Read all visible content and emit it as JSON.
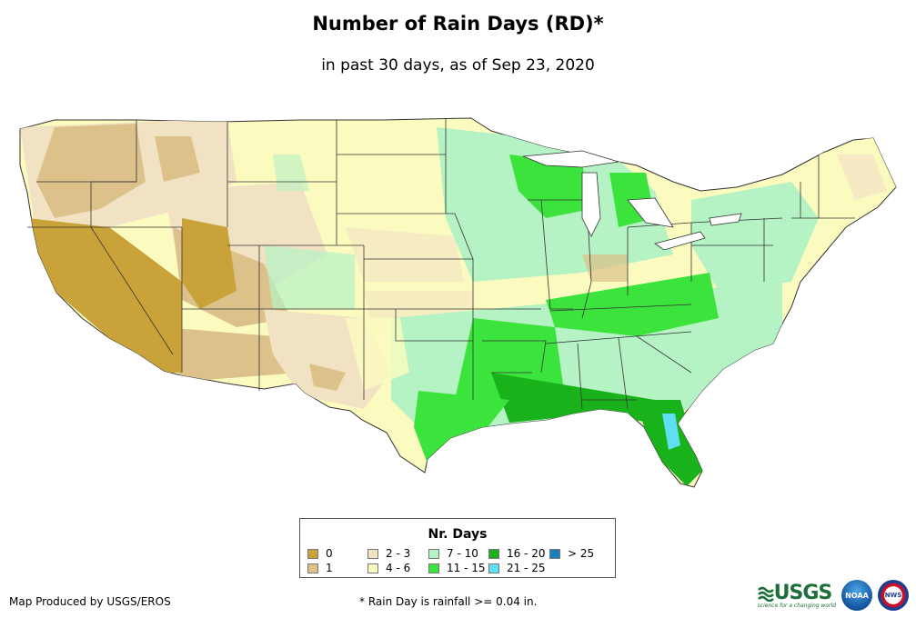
{
  "header": {
    "title": "Number of Rain Days (RD)*",
    "subtitle": "in past 30 days, as of Sep 23, 2020"
  },
  "legend": {
    "title": "Nr. Days",
    "items": [
      {
        "label": "0",
        "color": "#c9a23a"
      },
      {
        "label": "1",
        "color": "#dcc18a"
      },
      {
        "label": "2 - 3",
        "color": "#f2e2c4"
      },
      {
        "label": "4 - 6",
        "color": "#fbfbbf"
      },
      {
        "label": "7 - 10",
        "color": "#b5f2c4"
      },
      {
        "label": "11 - 15",
        "color": "#3ce33c"
      },
      {
        "label": "16 - 20",
        "color": "#1ab21a"
      },
      {
        "label": "21 - 25",
        "color": "#5ee0f2"
      },
      {
        "label": "> 25",
        "color": "#1a7fbf"
      }
    ]
  },
  "footer": {
    "producer": "Map Produced by USGS/EROS",
    "footnote": "* Rain Day is rainfall >= 0.04 in."
  },
  "logos": {
    "usgs": "USGS",
    "usgs_tagline": "science for a changing world",
    "noaa": "NOAA",
    "nws": "NWS"
  }
}
